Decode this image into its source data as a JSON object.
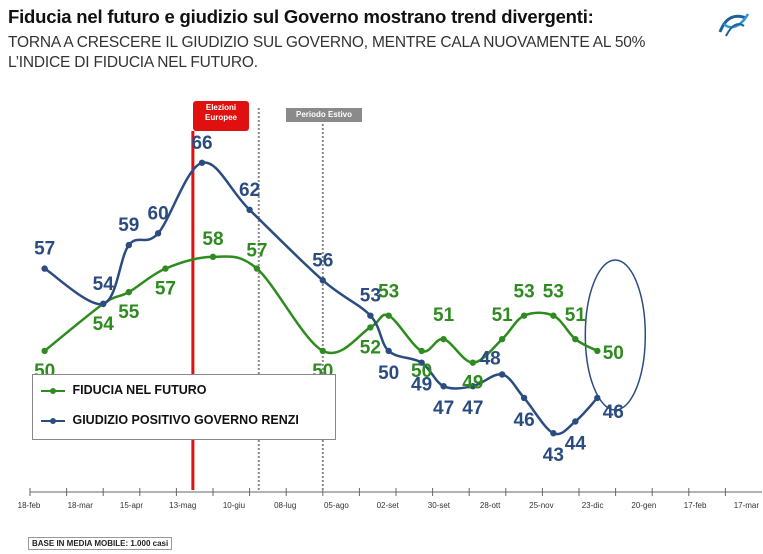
{
  "header": {
    "title": "Fiducia nel futuro e giudizio sul Governo mostrano trend divergenti:",
    "subtitle_line1": "TORNA A CRESCERE IL GIUDIZIO SUL GOVERNO, MENTRE CALA NUOVAMENTE AL 50%",
    "subtitle_line2": "L’INDICE DI FIDUCIA NEL FUTURO."
  },
  "footnote": "BASE IN MEDIA MOBILE: 1.000 casi",
  "annotations": {
    "elezioni_line1": "Elezioni",
    "elezioni_line2": "Europee",
    "periodo_estivo": "Periodo Estivo"
  },
  "colors": {
    "fiducia": "#2e8b1f",
    "governo": "#2b4c80",
    "elezioni": "#e01010",
    "estivo": "#8a8a8a"
  },
  "chart_data": {
    "type": "line",
    "categories": [
      "18-feb",
      "18-mar",
      "15-apr",
      "13-mag",
      "10-giu",
      "08-lug",
      "05-ago",
      "02-set",
      "30-set",
      "28-ott",
      "25-nov",
      "23-dic",
      "20-gen",
      "17-feb",
      "17-mar"
    ],
    "series": [
      {
        "name": "FIDUCIA NEL FUTURO",
        "points": [
          {
            "x": 0.4,
            "y": 50,
            "label": "50"
          },
          {
            "x": 2.0,
            "y": 54,
            "label": "54"
          },
          {
            "x": 2.7,
            "y": 55,
            "label": "55"
          },
          {
            "x": 3.7,
            "y": 57,
            "label": "57"
          },
          {
            "x": 5.0,
            "y": 58,
            "label": "58"
          },
          {
            "x": 6.2,
            "y": 57,
            "label": "57"
          },
          {
            "x": 8.0,
            "y": 50,
            "label": "50"
          },
          {
            "x": 9.3,
            "y": 52,
            "label": "52"
          },
          {
            "x": 9.8,
            "y": 53,
            "label": "53"
          },
          {
            "x": 10.7,
            "y": 50,
            "label": "50"
          },
          {
            "x": 11.3,
            "y": 51,
            "label": "51"
          },
          {
            "x": 12.1,
            "y": 49,
            "label": "49"
          },
          {
            "x": 12.9,
            "y": 51,
            "label": "51"
          },
          {
            "x": 13.5,
            "y": 53,
            "label": "53"
          },
          {
            "x": 14.3,
            "y": 53,
            "label": "53"
          },
          {
            "x": 14.9,
            "y": 51,
            "label": "51"
          },
          {
            "x": 15.5,
            "y": 50,
            "label": "50"
          }
        ]
      },
      {
        "name": "GIUDIZIO POSITIVO GOVERNO RENZI",
        "points": [
          {
            "x": 0.4,
            "y": 57,
            "label": "57"
          },
          {
            "x": 2.0,
            "y": 54,
            "label": "54"
          },
          {
            "x": 2.7,
            "y": 59,
            "label": "59"
          },
          {
            "x": 3.5,
            "y": 60,
            "label": "60"
          },
          {
            "x": 4.7,
            "y": 66,
            "label": "66"
          },
          {
            "x": 6.0,
            "y": 62,
            "label": "62"
          },
          {
            "x": 8.0,
            "y": 56,
            "label": "56"
          },
          {
            "x": 9.3,
            "y": 53,
            "label": "53"
          },
          {
            "x": 9.8,
            "y": 50,
            "label": "50"
          },
          {
            "x": 10.7,
            "y": 49,
            "label": "49"
          },
          {
            "x": 11.3,
            "y": 47,
            "label": "47"
          },
          {
            "x": 12.1,
            "y": 47,
            "label": "47"
          },
          {
            "x": 12.9,
            "y": 48,
            "label": "48"
          },
          {
            "x": 13.5,
            "y": 46,
            "label": "46"
          },
          {
            "x": 14.3,
            "y": 43,
            "label": "43"
          },
          {
            "x": 14.9,
            "y": 44,
            "label": "44"
          },
          {
            "x": 15.5,
            "y": 46,
            "label": "46"
          }
        ]
      }
    ],
    "ylim": [
      38,
      72
    ],
    "legend_position": "bottom-left",
    "events": [
      {
        "label": "Elezioni Europee",
        "x": 4.45
      },
      {
        "label": "Periodo Estivo",
        "x_start": 6.25,
        "x_end": 8.0
      }
    ]
  }
}
